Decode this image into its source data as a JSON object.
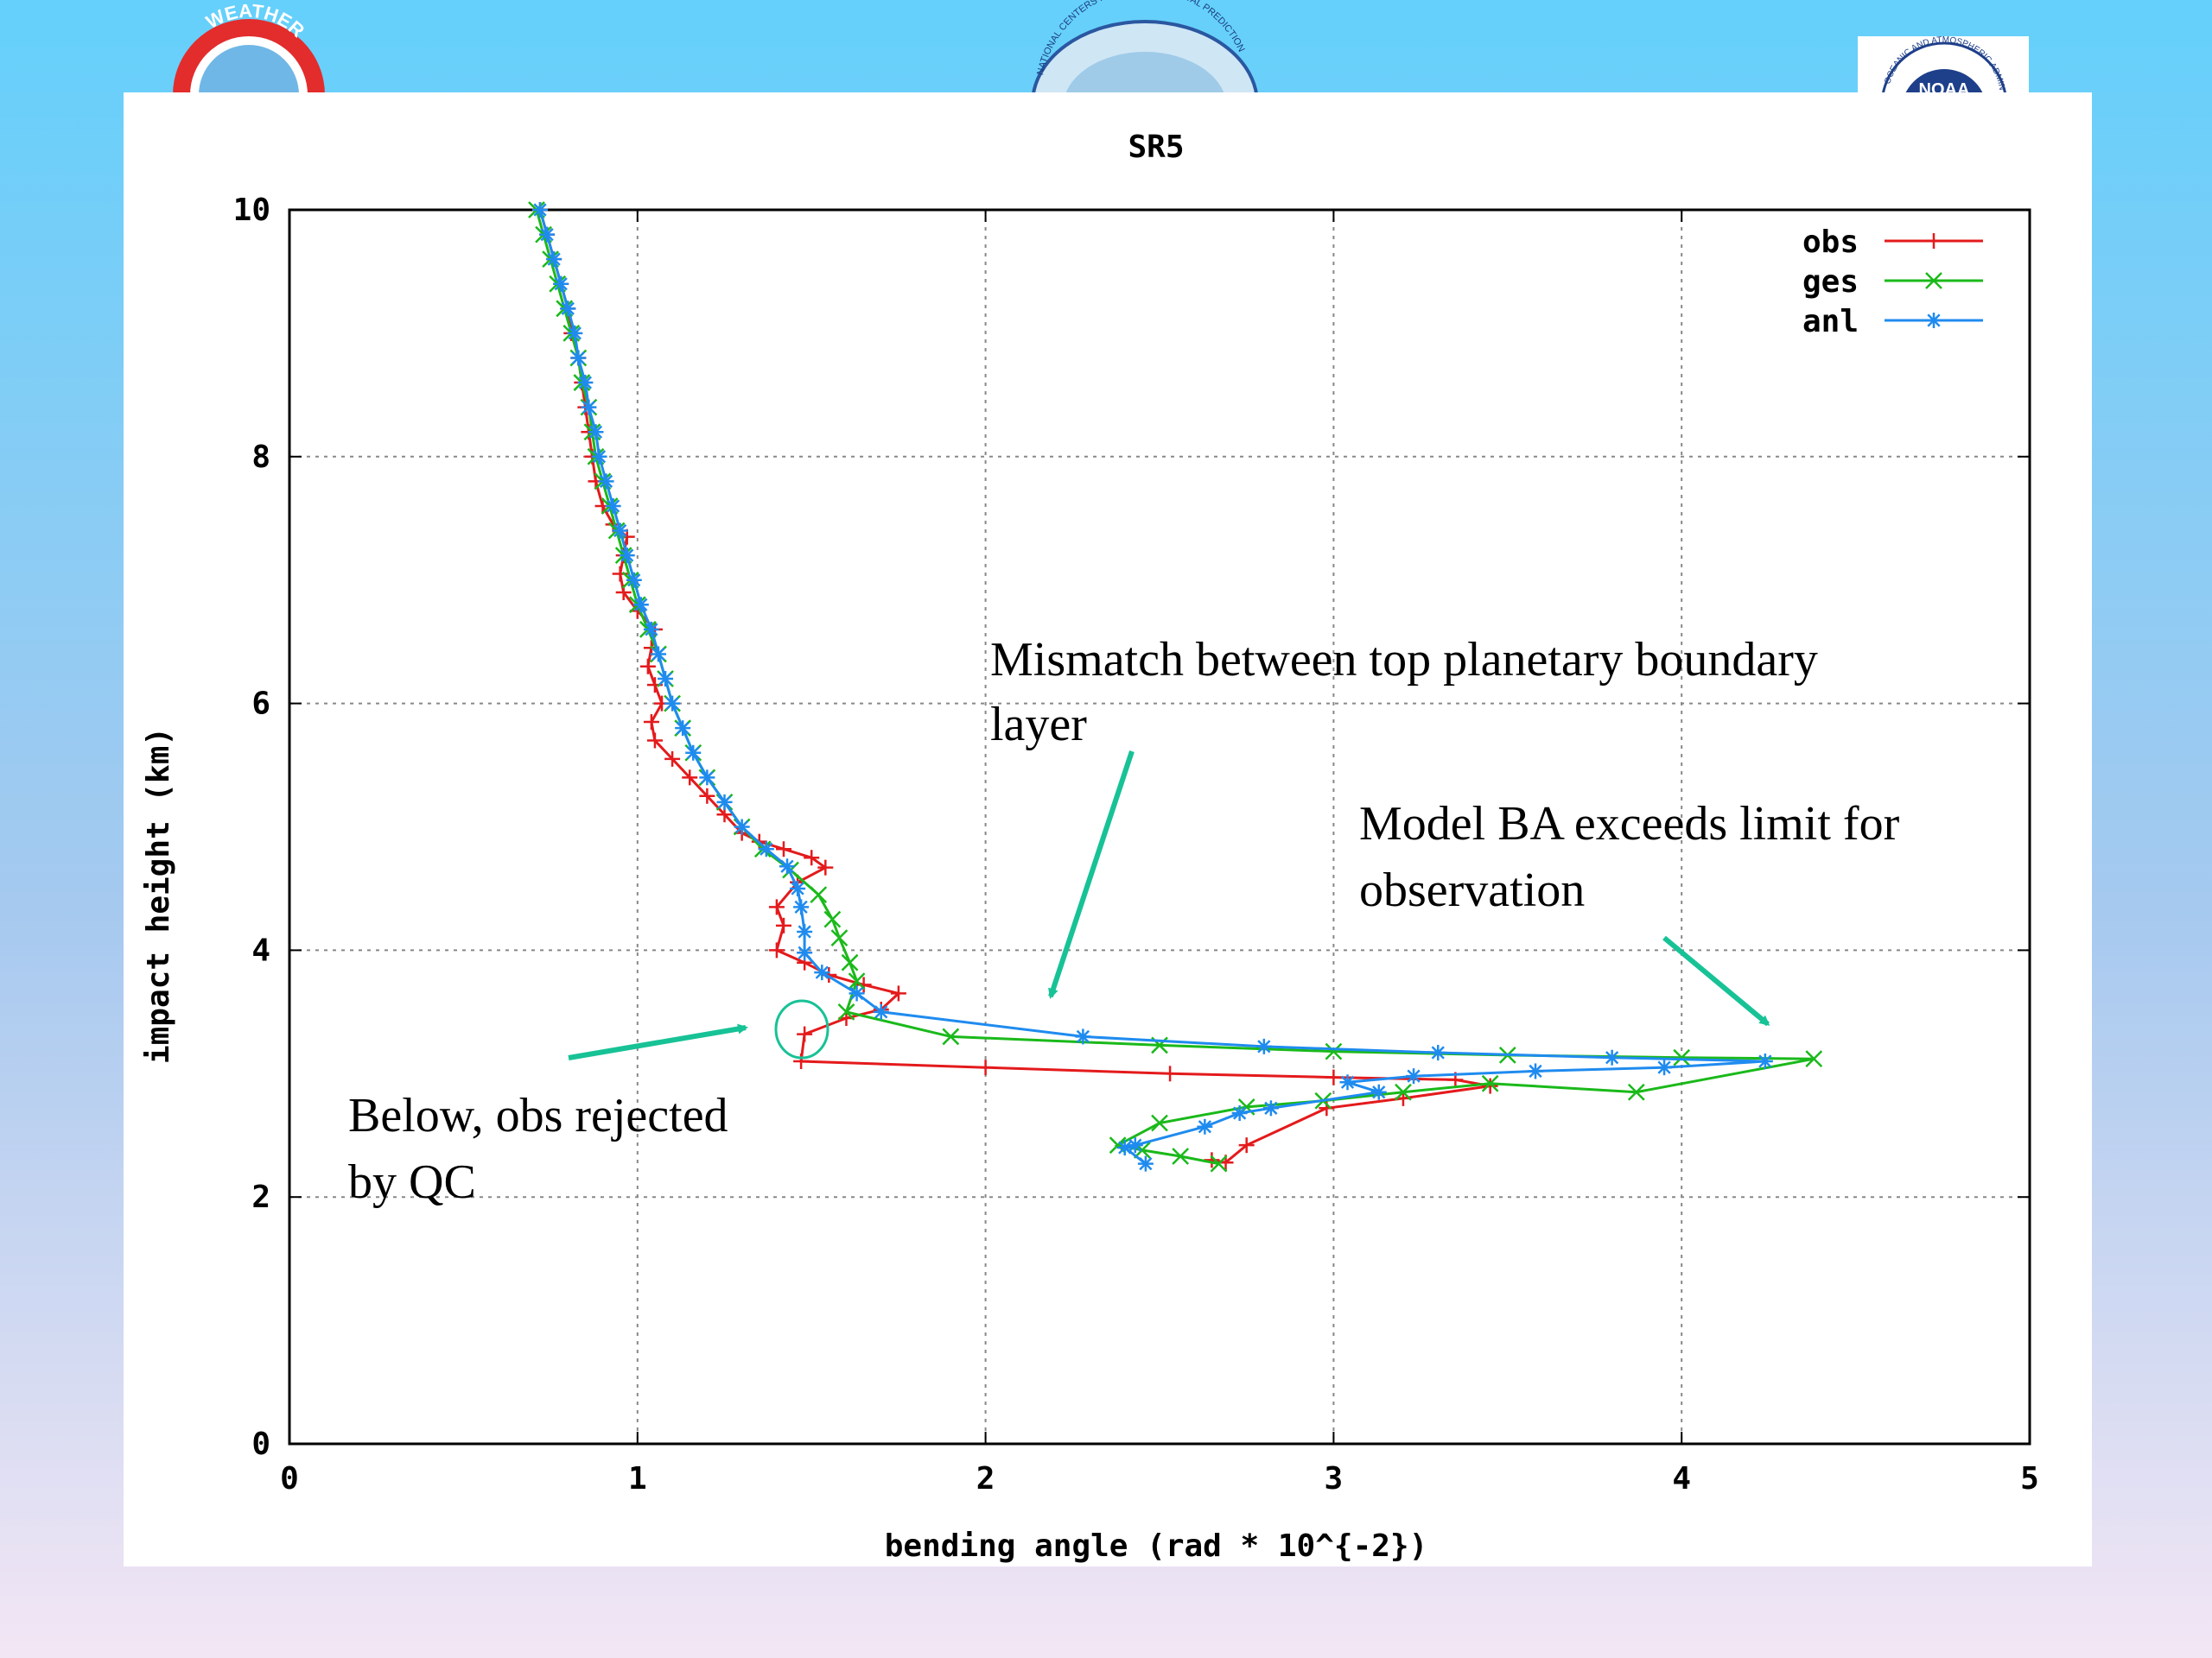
{
  "logos": {
    "left": {
      "icon": "weather-service-seal-icon",
      "text": "WEATHER"
    },
    "center": {
      "icon": "ncep-seal-icon",
      "text": "NATIONAL CENTERS FOR ENVIRONMENTAL PREDICTION"
    },
    "right": {
      "icon": "noaa-seal-icon",
      "text": "NOAA",
      "ring_text": "OCEANIC AND ATMOSPHERIC ADMIN"
    }
  },
  "chart_data": {
    "type": "line",
    "title": "SR5",
    "xlabel": "bending angle (rad * 10^{-2})",
    "ylabel": "impact height (km)",
    "xlim": [
      0,
      5
    ],
    "ylim": [
      0,
      10
    ],
    "xticks": [
      "0",
      "1",
      "2",
      "3",
      "4",
      "5"
    ],
    "yticks": [
      "0",
      "2",
      "4",
      "6",
      "8",
      "10"
    ],
    "grid": true,
    "legend_position": "top-right",
    "series": [
      {
        "name": "obs",
        "color": "#e41a1c",
        "marker": "plus",
        "points": [
          [
            0.72,
            10.0
          ],
          [
            0.74,
            9.8
          ],
          [
            0.76,
            9.6
          ],
          [
            0.78,
            9.4
          ],
          [
            0.8,
            9.2
          ],
          [
            0.81,
            9.0
          ],
          [
            0.83,
            8.8
          ],
          [
            0.84,
            8.6
          ],
          [
            0.85,
            8.4
          ],
          [
            0.86,
            8.2
          ],
          [
            0.87,
            8.0
          ],
          [
            0.88,
            7.8
          ],
          [
            0.9,
            7.6
          ],
          [
            0.93,
            7.45
          ],
          [
            0.97,
            7.35
          ],
          [
            0.96,
            7.2
          ],
          [
            0.95,
            7.05
          ],
          [
            0.96,
            6.9
          ],
          [
            1.0,
            6.75
          ],
          [
            1.05,
            6.6
          ],
          [
            1.04,
            6.45
          ],
          [
            1.03,
            6.3
          ],
          [
            1.05,
            6.15
          ],
          [
            1.07,
            6.0
          ],
          [
            1.04,
            5.85
          ],
          [
            1.05,
            5.7
          ],
          [
            1.1,
            5.55
          ],
          [
            1.15,
            5.4
          ],
          [
            1.2,
            5.25
          ],
          [
            1.25,
            5.1
          ],
          [
            1.3,
            4.95
          ],
          [
            1.35,
            4.88
          ],
          [
            1.42,
            4.82
          ],
          [
            1.5,
            4.75
          ],
          [
            1.54,
            4.67
          ],
          [
            1.46,
            4.55
          ],
          [
            1.4,
            4.35
          ],
          [
            1.42,
            4.2
          ],
          [
            1.4,
            4.0
          ],
          [
            1.48,
            3.9
          ],
          [
            1.55,
            3.8
          ],
          [
            1.65,
            3.72
          ],
          [
            1.75,
            3.65
          ],
          [
            1.7,
            3.52
          ],
          [
            1.6,
            3.45
          ],
          [
            1.48,
            3.32
          ],
          [
            1.47,
            3.1
          ],
          [
            2.0,
            3.05
          ],
          [
            2.53,
            3.0
          ],
          [
            3.0,
            2.97
          ],
          [
            3.35,
            2.95
          ],
          [
            3.45,
            2.9
          ],
          [
            3.2,
            2.8
          ],
          [
            2.98,
            2.72
          ],
          [
            2.75,
            2.42
          ],
          [
            2.69,
            2.28
          ],
          [
            2.65,
            2.3
          ]
        ]
      },
      {
        "name": "ges",
        "color": "#1ab91a",
        "marker": "cross",
        "points": [
          [
            0.71,
            10.0
          ],
          [
            0.73,
            9.8
          ],
          [
            0.75,
            9.6
          ],
          [
            0.77,
            9.4
          ],
          [
            0.79,
            9.2
          ],
          [
            0.81,
            9.0
          ],
          [
            0.83,
            8.8
          ],
          [
            0.84,
            8.6
          ],
          [
            0.86,
            8.4
          ],
          [
            0.87,
            8.2
          ],
          [
            0.88,
            8.0
          ],
          [
            0.9,
            7.8
          ],
          [
            0.92,
            7.6
          ],
          [
            0.94,
            7.4
          ],
          [
            0.96,
            7.2
          ],
          [
            0.98,
            7.0
          ],
          [
            1.0,
            6.8
          ],
          [
            1.03,
            6.6
          ],
          [
            1.06,
            6.4
          ],
          [
            1.08,
            6.2
          ],
          [
            1.1,
            6.0
          ],
          [
            1.13,
            5.8
          ],
          [
            1.16,
            5.6
          ],
          [
            1.2,
            5.4
          ],
          [
            1.25,
            5.2
          ],
          [
            1.3,
            5.0
          ],
          [
            1.36,
            4.82
          ],
          [
            1.44,
            4.65
          ],
          [
            1.52,
            4.45
          ],
          [
            1.56,
            4.25
          ],
          [
            1.58,
            4.1
          ],
          [
            1.61,
            3.9
          ],
          [
            1.63,
            3.75
          ],
          [
            1.6,
            3.5
          ],
          [
            1.9,
            3.3
          ],
          [
            2.5,
            3.23
          ],
          [
            3.0,
            3.18
          ],
          [
            3.5,
            3.15
          ],
          [
            4.0,
            3.13
          ],
          [
            4.38,
            3.12
          ],
          [
            3.87,
            2.85
          ],
          [
            3.45,
            2.92
          ],
          [
            3.2,
            2.85
          ],
          [
            2.97,
            2.78
          ],
          [
            2.75,
            2.73
          ],
          [
            2.5,
            2.6
          ],
          [
            2.38,
            2.42
          ],
          [
            2.45,
            2.38
          ],
          [
            2.56,
            2.33
          ],
          [
            2.67,
            2.27
          ]
        ]
      },
      {
        "name": "anl",
        "color": "#1f8bef",
        "marker": "star",
        "points": [
          [
            0.72,
            10.0
          ],
          [
            0.74,
            9.8
          ],
          [
            0.76,
            9.6
          ],
          [
            0.78,
            9.4
          ],
          [
            0.8,
            9.2
          ],
          [
            0.82,
            9.0
          ],
          [
            0.83,
            8.8
          ],
          [
            0.85,
            8.6
          ],
          [
            0.86,
            8.4
          ],
          [
            0.88,
            8.2
          ],
          [
            0.89,
            8.0
          ],
          [
            0.91,
            7.8
          ],
          [
            0.93,
            7.6
          ],
          [
            0.95,
            7.4
          ],
          [
            0.97,
            7.2
          ],
          [
            0.99,
            7.0
          ],
          [
            1.01,
            6.8
          ],
          [
            1.04,
            6.6
          ],
          [
            1.06,
            6.4
          ],
          [
            1.08,
            6.2
          ],
          [
            1.1,
            6.0
          ],
          [
            1.13,
            5.8
          ],
          [
            1.16,
            5.6
          ],
          [
            1.2,
            5.4
          ],
          [
            1.25,
            5.2
          ],
          [
            1.3,
            5.0
          ],
          [
            1.37,
            4.82
          ],
          [
            1.43,
            4.68
          ],
          [
            1.46,
            4.5
          ],
          [
            1.47,
            4.35
          ],
          [
            1.48,
            4.15
          ],
          [
            1.48,
            3.98
          ],
          [
            1.53,
            3.82
          ],
          [
            1.63,
            3.65
          ],
          [
            1.7,
            3.5
          ],
          [
            2.28,
            3.3
          ],
          [
            2.8,
            3.22
          ],
          [
            3.3,
            3.17
          ],
          [
            3.8,
            3.13
          ],
          [
            4.24,
            3.1
          ],
          [
            3.95,
            3.05
          ],
          [
            3.58,
            3.02
          ],
          [
            3.23,
            2.98
          ],
          [
            3.04,
            2.93
          ],
          [
            3.13,
            2.85
          ],
          [
            2.82,
            2.72
          ],
          [
            2.73,
            2.68
          ],
          [
            2.63,
            2.57
          ],
          [
            2.43,
            2.42
          ],
          [
            2.4,
            2.4
          ],
          [
            2.46,
            2.27
          ]
        ]
      }
    ],
    "annotations": {
      "pbl": {
        "text_line1": "Mismatch between top planetary boundary",
        "text_line2": "layer"
      },
      "limit": {
        "text_line1": "Model BA exceeds limit for",
        "text_line2": "observation"
      },
      "qc": {
        "text_line1": "Below, obs rejected",
        "text_line2": "by QC"
      },
      "arrow_color": "#17c296"
    }
  }
}
